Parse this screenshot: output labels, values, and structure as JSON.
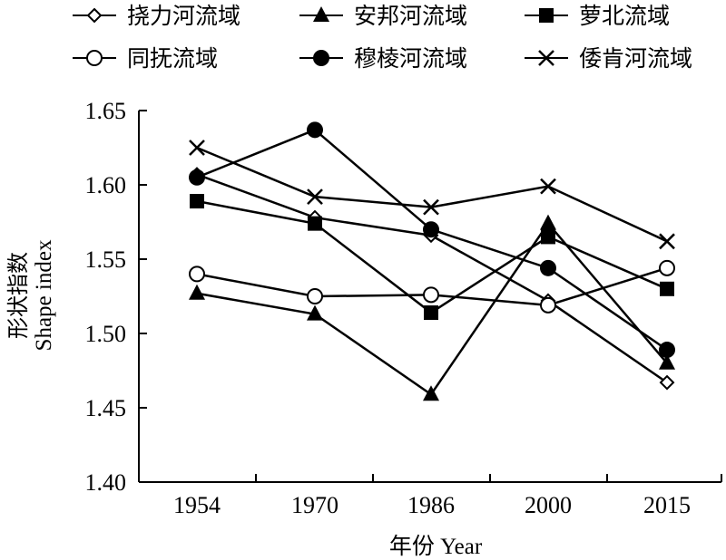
{
  "chart_data": {
    "type": "line",
    "title": "",
    "xlabel": "年份 Year",
    "ylabel_cn": "形状指数",
    "ylabel_en": "Shape index",
    "categories": [
      "1954",
      "1970",
      "1986",
      "2000",
      "2015"
    ],
    "ylim": [
      1.4,
      1.65
    ],
    "yticks": [
      "1.40",
      "1.45",
      "1.50",
      "1.55",
      "1.60",
      "1.65"
    ],
    "grid": false,
    "legend_position": "top",
    "series": [
      {
        "name": "挠力河流域",
        "marker": "diamond-open",
        "values": [
          1.607,
          1.578,
          1.566,
          1.522,
          1.467
        ]
      },
      {
        "name": "安邦河流域",
        "marker": "triangle-filled",
        "values": [
          1.527,
          1.513,
          1.459,
          1.574,
          1.48
        ]
      },
      {
        "name": "萝北流域",
        "marker": "square-filled",
        "values": [
          1.589,
          1.574,
          1.514,
          1.565,
          1.53
        ]
      },
      {
        "name": "同抚流域",
        "marker": "circle-open",
        "values": [
          1.54,
          1.525,
          1.526,
          1.519,
          1.544
        ]
      },
      {
        "name": "穆棱河流域",
        "marker": "circle-filled",
        "values": [
          1.605,
          1.637,
          1.57,
          1.544,
          1.489
        ]
      },
      {
        "name": "倭肯河流域",
        "marker": "x",
        "values": [
          1.625,
          1.592,
          1.585,
          1.599,
          1.562
        ]
      }
    ]
  }
}
